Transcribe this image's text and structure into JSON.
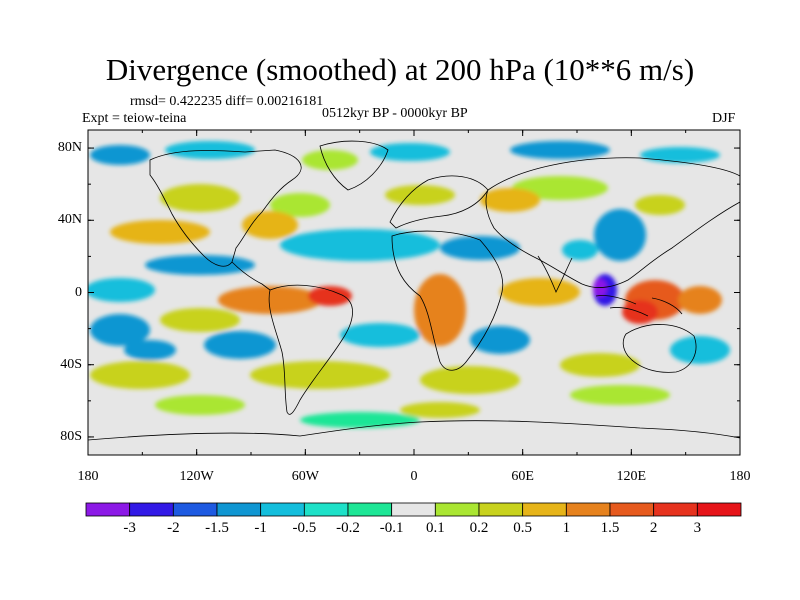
{
  "title": "Divergence (smoothed) at 200 hPa (10**6 m/s)",
  "stats": "rmsd= 0.422235 diff= 0.00216181",
  "experiment": "Expt = teiow-teina",
  "period": "0512kyr BP - 0000kyr BP",
  "season": "DJF",
  "lat_ticks": [
    "80N",
    "40N",
    "0",
    "40S",
    "80S"
  ],
  "lon_ticks": [
    "180",
    "120W",
    "60W",
    "0",
    "60E",
    "120E",
    "180"
  ],
  "colorbar": {
    "labels": [
      "-3",
      "-2",
      "-1.5",
      "-1",
      "-0.5",
      "-0.2",
      "-0.1",
      "0.1",
      "0.2",
      "0.5",
      "1",
      "1.5",
      "2",
      "3"
    ],
    "colors": [
      "#8c19e6",
      "#3219e6",
      "#1e5ae1",
      "#0f96d2",
      "#14bedc",
      "#1ee1c8",
      "#1ee696",
      "#e6e6e6",
      "#aae632",
      "#c8d21e",
      "#e6b419",
      "#e6821e",
      "#e65a1e",
      "#e6321e",
      "#e61419"
    ]
  },
  "colors": {
    "land_outline": "#000000",
    "neutral": "#e6e6e6"
  }
}
